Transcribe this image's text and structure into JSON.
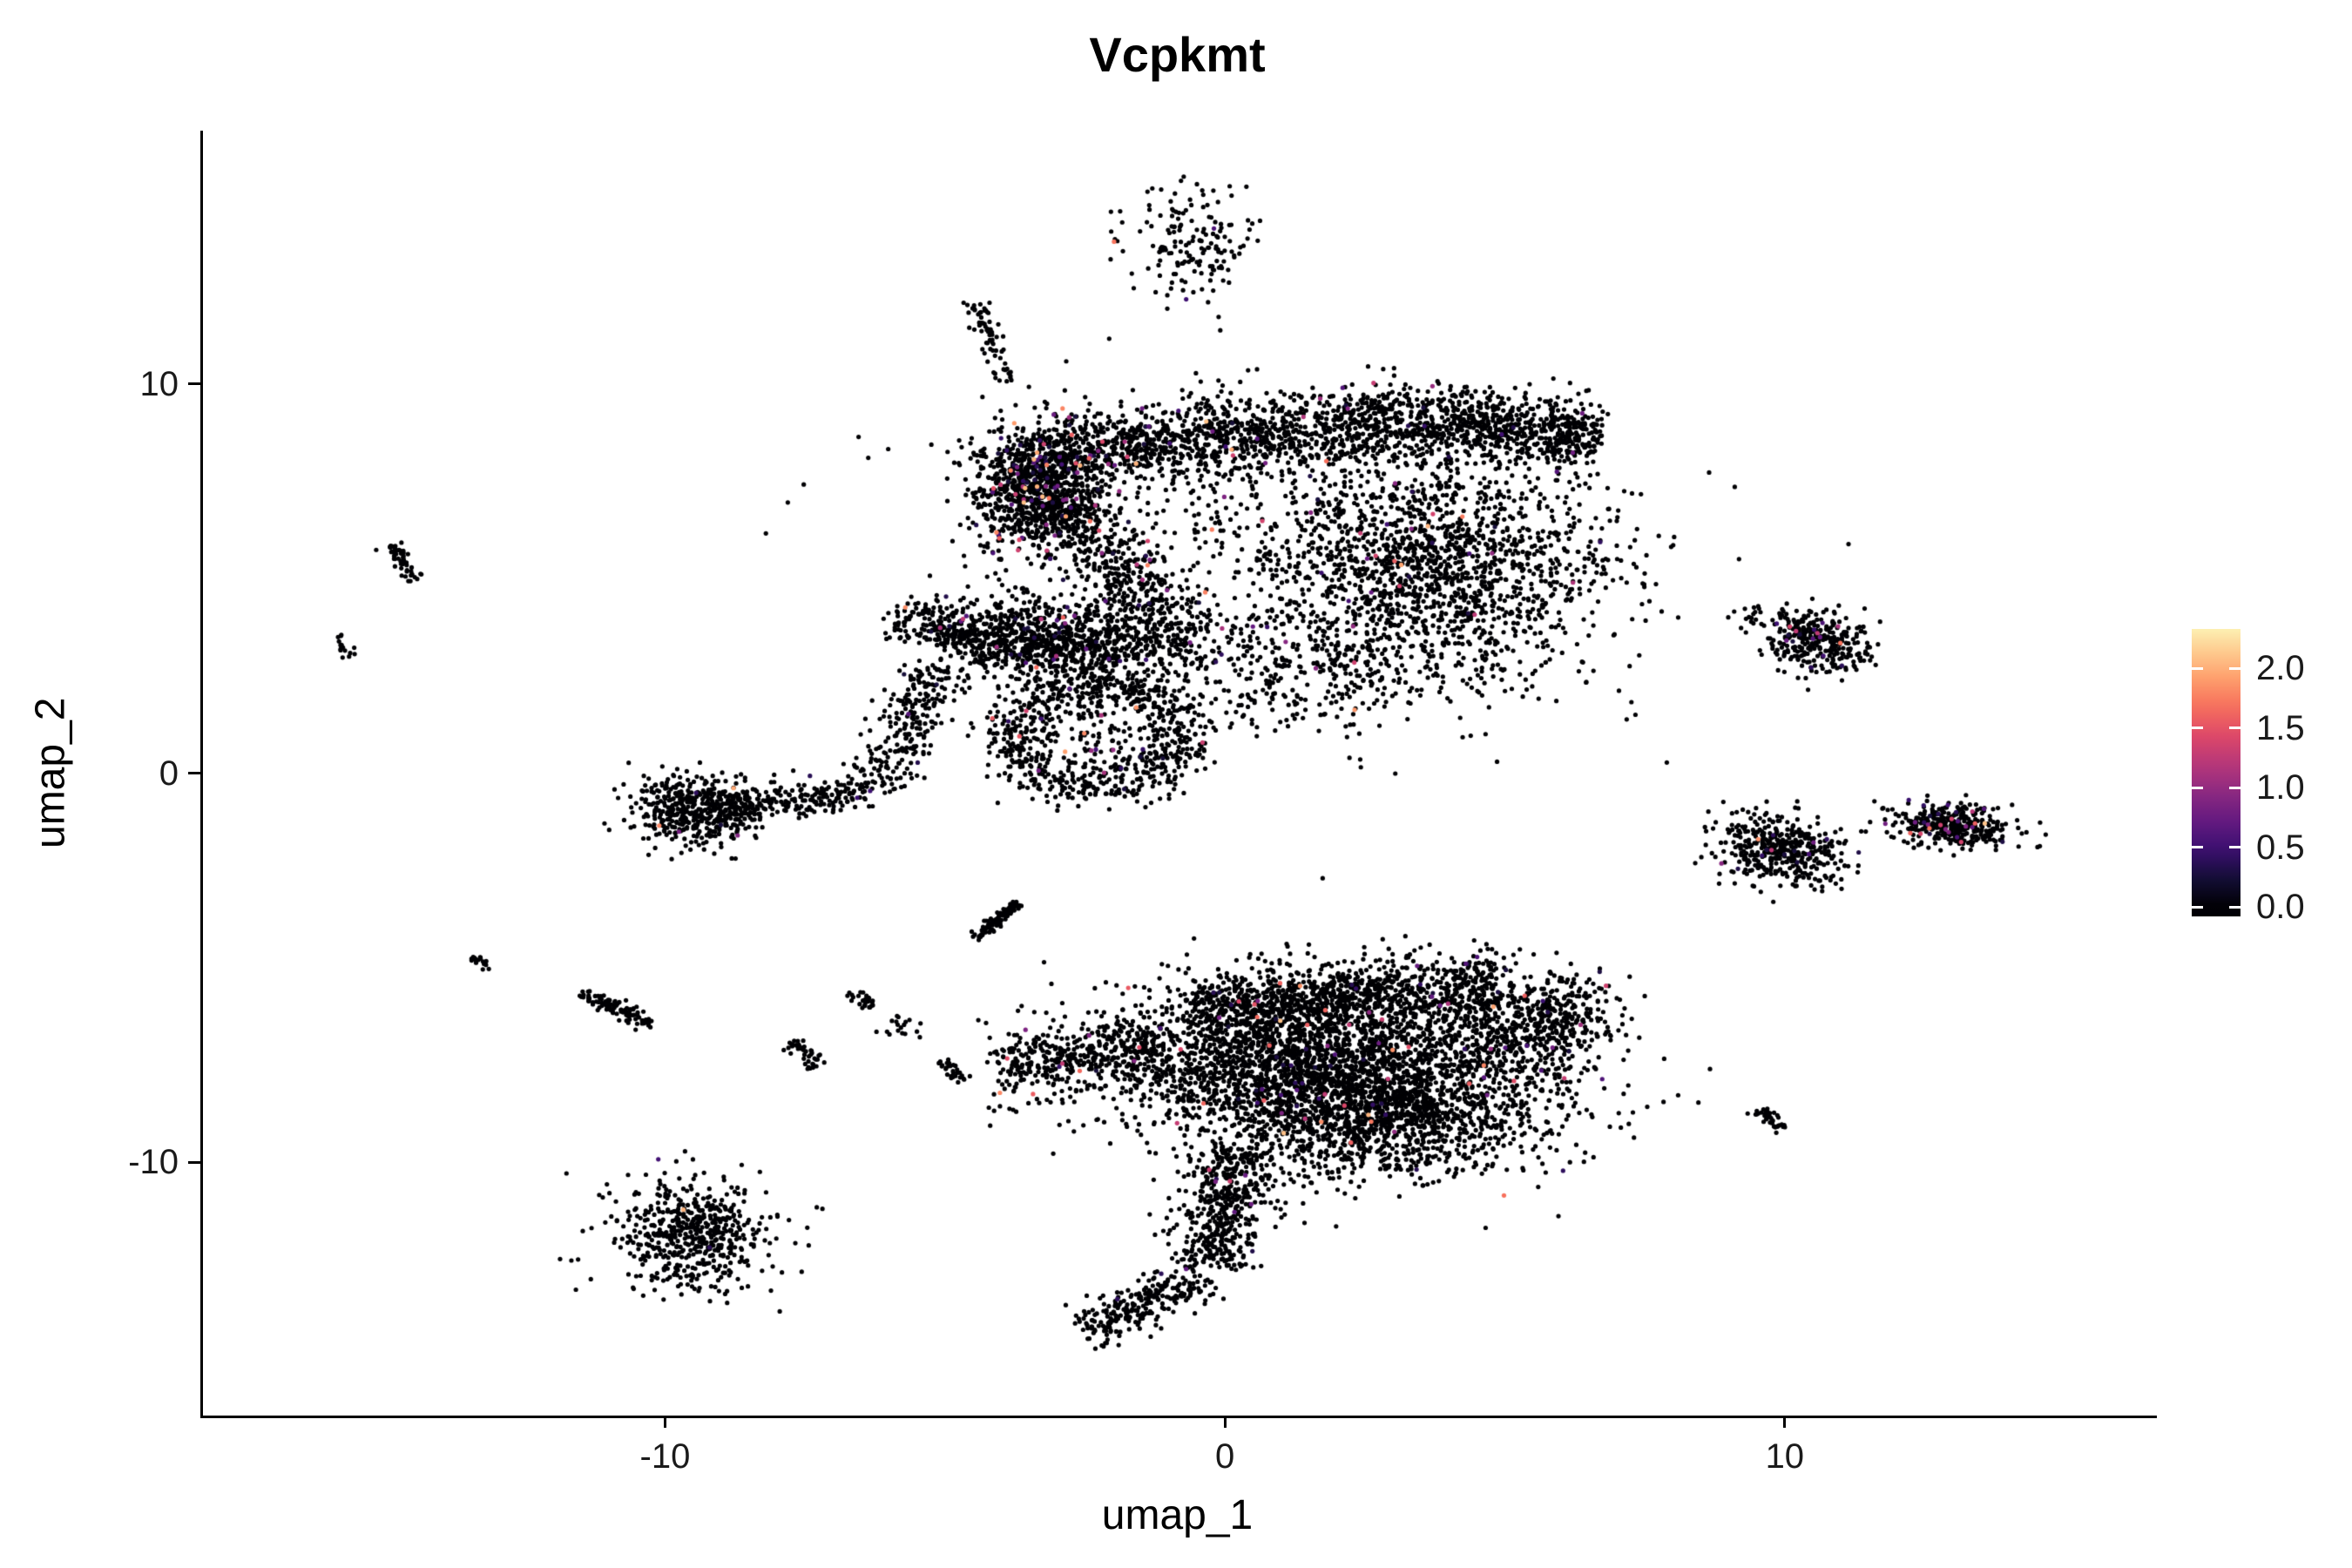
{
  "title": "Vcpkmt",
  "chart_data": {
    "type": "scatter",
    "title": "Vcpkmt",
    "xlabel": "umap_1",
    "ylabel": "umap_2",
    "xlim": [
      -18.3,
      16.6
    ],
    "ylim": [
      -16.5,
      16.5
    ],
    "grid": false,
    "legend_position": "right",
    "background": "#ffffff",
    "point_radius_px": 2.6,
    "xticks": {
      "values": [
        -10,
        0,
        10
      ],
      "labels": [
        "-10",
        "0",
        "10"
      ]
    },
    "yticks": {
      "values": [
        10,
        0,
        -10
      ],
      "labels": [
        "10",
        "0",
        "-10"
      ]
    },
    "colorbar": {
      "tick_values": [
        2.0,
        1.5,
        1.0,
        0.5,
        0.0
      ],
      "tick_labels": [
        "2.0",
        "1.5",
        "1.0",
        "0.5",
        "0.0"
      ],
      "vmin": -0.08,
      "vmax": 2.33,
      "value_to_t_scale": 2.4,
      "colormap_name": "magma",
      "colormap_stops": [
        [
          0.0,
          "#000004"
        ],
        [
          0.1,
          "#140e36"
        ],
        [
          0.2,
          "#3b0f70"
        ],
        [
          0.3,
          "#641a80"
        ],
        [
          0.4,
          "#8c2981"
        ],
        [
          0.5,
          "#b73779"
        ],
        [
          0.6,
          "#de4968"
        ],
        [
          0.7,
          "#f7705c"
        ],
        [
          0.8,
          "#fe9f6d"
        ],
        [
          0.9,
          "#fecf92"
        ],
        [
          1.0,
          "#fcfdbf"
        ]
      ]
    },
    "clusters": [
      {
        "name": "top-islet",
        "type": "gauss",
        "cx": -0.55,
        "cy": 13.6,
        "sx": 0.62,
        "sy": 0.72,
        "rot": -15,
        "n": 170,
        "pos_frac": 0.02
      },
      {
        "name": "upper-streak",
        "type": "line",
        "x1": -4.5,
        "y1": 12.1,
        "x2": -3.95,
        "y2": 10.1,
        "w": 0.13,
        "n": 70,
        "pos_frac": 0.01
      },
      {
        "name": "knot",
        "type": "gauss",
        "cx": -3.45,
        "cy": 7.3,
        "sx": 0.5,
        "sy": 0.75,
        "rot": 0,
        "n": 950,
        "pos_frac": 0.07
      },
      {
        "name": "top-band-left",
        "type": "line",
        "x1": -3.1,
        "y1": 8.2,
        "x2": 3.3,
        "y2": 9.15,
        "w": 0.5,
        "n": 1250,
        "pos_frac": 0.025
      },
      {
        "name": "top-band-right",
        "type": "line",
        "x1": 3.3,
        "y1": 9.15,
        "x2": 6.6,
        "y2": 8.55,
        "w": 0.45,
        "n": 700,
        "pos_frac": 0.02
      },
      {
        "name": "upper-right-lobe",
        "type": "gauss",
        "cx": 3.6,
        "cy": 5.2,
        "sx": 1.55,
        "sy": 1.5,
        "rot": 20,
        "n": 1700,
        "pos_frac": 0.02
      },
      {
        "name": "upper-diffuse",
        "type": "gauss",
        "cx": 1.0,
        "cy": 6.5,
        "sx": 2.8,
        "sy": 1.6,
        "rot": 0,
        "n": 450,
        "pos_frac": 0.02
      },
      {
        "name": "knot-arm",
        "type": "line",
        "x1": -3.0,
        "y1": 6.9,
        "x2": -0.6,
        "y2": 3.3,
        "w": 0.42,
        "n": 480,
        "pos_frac": 0.03
      },
      {
        "name": "mid-scatter",
        "type": "gauss",
        "cx": 1.2,
        "cy": 2.6,
        "sx": 1.3,
        "sy": 0.8,
        "rot": 0,
        "n": 300,
        "pos_frac": 0.02
      },
      {
        "name": "midleft-dense",
        "type": "gauss",
        "cx": -3.1,
        "cy": 3.4,
        "sx": 1.05,
        "sy": 0.55,
        "rot": -8,
        "n": 950,
        "pos_frac": 0.03
      },
      {
        "name": "midleft-arm",
        "type": "line",
        "x1": -5.9,
        "y1": 4.05,
        "x2": -4.1,
        "y2": 3.35,
        "w": 0.28,
        "n": 190,
        "pos_frac": 0.02
      },
      {
        "name": "ring",
        "type": "ring",
        "cx": -2.35,
        "cy": 0.95,
        "rx": 1.55,
        "ry": 1.35,
        "w": 0.3,
        "n": 650,
        "pos_frac": 0.03
      },
      {
        "name": "ring-inner",
        "type": "gauss",
        "cx": -2.3,
        "cy": 0.9,
        "sx": 0.8,
        "sy": 0.7,
        "rot": 0,
        "n": 170,
        "pos_frac": 0.03
      },
      {
        "name": "ring-left-arm",
        "type": "line",
        "x1": -5.15,
        "y1": 2.75,
        "x2": -6.35,
        "y2": -0.4,
        "w": 0.3,
        "n": 260,
        "pos_frac": 0.02
      },
      {
        "name": "left-blob",
        "type": "gauss",
        "cx": -9.55,
        "cy": -0.95,
        "sx": 0.55,
        "sy": 0.42,
        "rot": -10,
        "n": 470,
        "pos_frac": 0.02
      },
      {
        "name": "left-blob-tail",
        "type": "line",
        "x1": -8.9,
        "y1": -0.85,
        "x2": -6.4,
        "y2": -0.5,
        "w": 0.22,
        "n": 210,
        "pos_frac": 0.02
      },
      {
        "name": "farleft-streak",
        "type": "line",
        "x1": -14.95,
        "y1": 5.85,
        "x2": -14.5,
        "y2": 4.95,
        "w": 0.09,
        "n": 50,
        "pos_frac": 0
      },
      {
        "name": "farleft-dots",
        "type": "line",
        "x1": -15.9,
        "y1": 3.5,
        "x2": -15.6,
        "y2": 3.0,
        "w": 0.09,
        "n": 16,
        "pos_frac": 0
      },
      {
        "name": "left-diag-b",
        "type": "line",
        "x1": -13.45,
        "y1": -4.65,
        "x2": -13.15,
        "y2": -5.05,
        "w": 0.07,
        "n": 18,
        "pos_frac": 0
      },
      {
        "name": "left-diag-c",
        "type": "line",
        "x1": -11.5,
        "y1": -5.6,
        "x2": -10.3,
        "y2": -6.5,
        "w": 0.11,
        "n": 95,
        "pos_frac": 0
      },
      {
        "name": "small-diag-d",
        "type": "line",
        "x1": -7.8,
        "y1": -6.9,
        "x2": -7.3,
        "y2": -7.5,
        "w": 0.1,
        "n": 45,
        "pos_frac": 0
      },
      {
        "name": "small-diag-e",
        "type": "line",
        "x1": -6.75,
        "y1": -5.6,
        "x2": -6.3,
        "y2": -6.0,
        "w": 0.09,
        "n": 26,
        "pos_frac": 0
      },
      {
        "name": "small-dots-f",
        "type": "gauss",
        "cx": -5.8,
        "cy": -6.5,
        "sx": 0.18,
        "sy": 0.15,
        "rot": 0,
        "n": 18,
        "pos_frac": 0.05
      },
      {
        "name": "small-diag-g",
        "type": "line",
        "x1": -5.1,
        "y1": -7.35,
        "x2": -4.75,
        "y2": -7.95,
        "w": 0.09,
        "n": 30,
        "pos_frac": 0
      },
      {
        "name": "center-diag",
        "type": "line",
        "x1": -4.5,
        "y1": -4.25,
        "x2": -3.75,
        "y2": -3.35,
        "w": 0.07,
        "n": 110,
        "pos_frac": 0
      },
      {
        "name": "bottom-left-taper",
        "type": "line",
        "x1": -4.15,
        "y1": -7.6,
        "x2": -1.2,
        "y2": -7.0,
        "w": 0.4,
        "n": 380,
        "pos_frac": 0.02
      },
      {
        "name": "bottom-body",
        "type": "gauss",
        "cx": 1.6,
        "cy": -7.6,
        "sx": 1.95,
        "sy": 1.1,
        "rot": -5,
        "n": 3100,
        "pos_frac": 0.02
      },
      {
        "name": "bottom-top-band",
        "type": "line",
        "x1": -0.6,
        "y1": -6.05,
        "x2": 4.8,
        "y2": -5.45,
        "w": 0.45,
        "n": 950,
        "pos_frac": 0.025
      },
      {
        "name": "bottom-right-lobe",
        "type": "gauss",
        "cx": 5.55,
        "cy": -6.4,
        "sx": 0.75,
        "sy": 0.7,
        "rot": 25,
        "n": 520,
        "pos_frac": 0.02
      },
      {
        "name": "bottom-bulge",
        "type": "gauss",
        "cx": 3.1,
        "cy": -8.9,
        "sx": 1.35,
        "sy": 0.75,
        "rot": 8,
        "n": 800,
        "pos_frac": 0.015
      },
      {
        "name": "tail",
        "type": "line",
        "x1": 0.25,
        "y1": -9.6,
        "x2": -0.35,
        "y2": -12.7,
        "w": 0.38,
        "n": 480,
        "pos_frac": 0.02
      },
      {
        "name": "tail-foot",
        "type": "line",
        "x1": -0.4,
        "y1": -12.9,
        "x2": -2.55,
        "y2": -14.35,
        "w": 0.26,
        "n": 260,
        "pos_frac": 0.02
      },
      {
        "name": "bottomleft-blob",
        "type": "gauss",
        "cx": -9.6,
        "cy": -11.9,
        "sx": 0.72,
        "sy": 0.7,
        "rot": 0,
        "n": 560,
        "pos_frac": 0.005
      },
      {
        "name": "right-top",
        "type": "gauss",
        "cx": 10.55,
        "cy": 3.4,
        "sx": 0.48,
        "sy": 0.38,
        "rot": -15,
        "n": 310,
        "pos_frac": 0.04
      },
      {
        "name": "right-top-spray",
        "type": "gauss",
        "cx": 9.7,
        "cy": 4.0,
        "sx": 0.3,
        "sy": 0.2,
        "rot": 0,
        "n": 25,
        "pos_frac": 0.05
      },
      {
        "name": "right-mid-a",
        "type": "gauss",
        "cx": 9.9,
        "cy": -1.95,
        "sx": 0.55,
        "sy": 0.45,
        "rot": -20,
        "n": 430,
        "pos_frac": 0.03
      },
      {
        "name": "right-mid-b",
        "type": "gauss",
        "cx": 12.95,
        "cy": -1.35,
        "sx": 0.55,
        "sy": 0.28,
        "rot": -8,
        "n": 390,
        "pos_frac": 0.06
      },
      {
        "name": "right-small-streak",
        "type": "line",
        "x1": 9.45,
        "y1": -8.6,
        "x2": 9.9,
        "y2": -9.15,
        "w": 0.09,
        "n": 40,
        "pos_frac": 0
      }
    ],
    "singles": [
      [
        1.7,
        -2.7,
        0
      ],
      [
        -5.4,
        1.05,
        0
      ],
      [
        -5.0,
        8.25,
        0
      ],
      [
        11.4,
        -1.5,
        0
      ],
      [
        11.75,
        -1.3,
        0.8
      ],
      [
        9.05,
        4.15,
        0
      ],
      [
        -6.95,
        -0.3,
        0
      ],
      [
        -10.15,
        -1.35,
        1.8
      ],
      [
        -8.75,
        -1.6,
        0.9
      ],
      [
        0.95,
        -11.2,
        0
      ],
      [
        1.35,
        -11.05,
        0
      ]
    ]
  }
}
